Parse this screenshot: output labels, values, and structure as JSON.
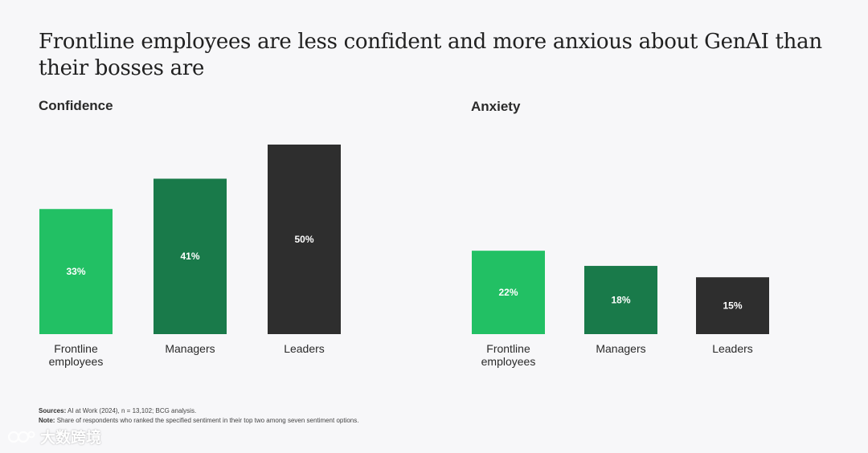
{
  "title": "Frontline employees are less confident and more anxious about GenAI than their bosses are",
  "colors": {
    "frontline": "#22c064",
    "managers": "#197a4a",
    "leaders": "#2e2e2e"
  },
  "chart_data": [
    {
      "type": "bar",
      "title": "Confidence",
      "categories": [
        "Frontline employees",
        "Managers",
        "Leaders"
      ],
      "values": [
        33,
        41,
        50
      ],
      "value_labels": [
        "33%",
        "41%",
        "50%"
      ],
      "unit": "%",
      "ylim": [
        0,
        50
      ]
    },
    {
      "type": "bar",
      "title": "Anxiety",
      "categories": [
        "Frontline employees",
        "Managers",
        "Leaders"
      ],
      "values": [
        22,
        18,
        15
      ],
      "value_labels": [
        "22%",
        "18%",
        "15%"
      ],
      "unit": "%",
      "ylim": [
        0,
        50
      ]
    }
  ],
  "footer": {
    "sources_label": "Sources:",
    "sources_text": "AI at Work (2024), n = 13,102; BCG analysis.",
    "note_label": "Note:",
    "note_text": "Share of respondents who ranked the specified sentiment in their top two among seven sentiment options."
  },
  "watermark": {
    "text": "大数跨境"
  }
}
